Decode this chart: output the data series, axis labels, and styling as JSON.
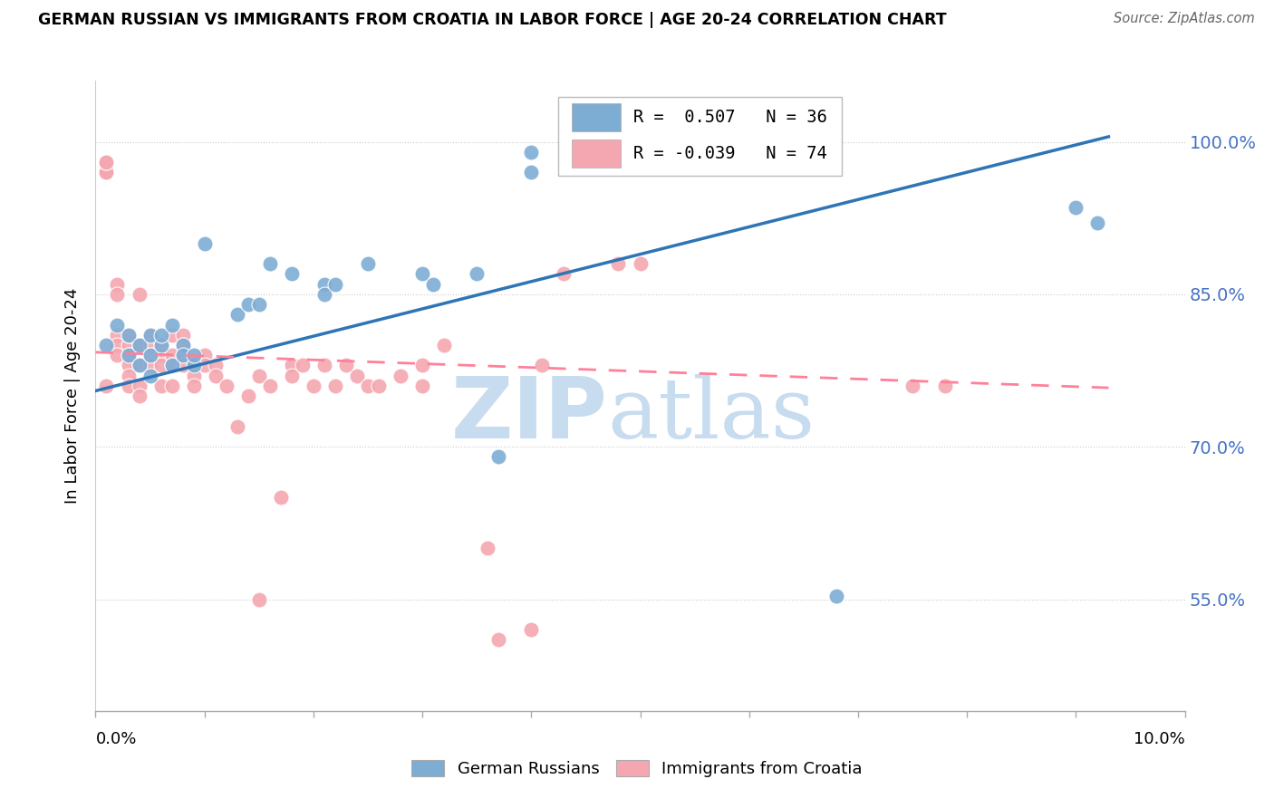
{
  "title": "GERMAN RUSSIAN VS IMMIGRANTS FROM CROATIA IN LABOR FORCE | AGE 20-24 CORRELATION CHART",
  "source": "Source: ZipAtlas.com",
  "ylabel": "In Labor Force | Age 20-24",
  "ytick_vals": [
    0.55,
    0.7,
    0.85,
    1.0
  ],
  "ytick_labels": [
    "55.0%",
    "70.0%",
    "85.0%",
    "100.0%"
  ],
  "legend_labels": [
    "German Russians",
    "Immigrants from Croatia"
  ],
  "legend_r_blue": "R =  0.507",
  "legend_n_blue": "N = 36",
  "legend_r_pink": "R = -0.039",
  "legend_n_pink": "N = 74",
  "blue_color": "#7EADD4",
  "pink_color": "#F4A7B0",
  "line_blue": "#2E75B6",
  "line_pink": "#FF8099",
  "watermark_zip_color": "#C8DCF0",
  "watermark_atlas_color": "#C8DCF0",
  "xmin": 0.0,
  "xmax": 0.1,
  "ymin": 0.44,
  "ymax": 1.06,
  "blue_scatter_x": [
    0.001,
    0.002,
    0.003,
    0.003,
    0.004,
    0.004,
    0.005,
    0.005,
    0.005,
    0.006,
    0.006,
    0.007,
    0.007,
    0.008,
    0.008,
    0.009,
    0.009,
    0.01,
    0.013,
    0.014,
    0.015,
    0.016,
    0.018,
    0.021,
    0.021,
    0.022,
    0.025,
    0.03,
    0.031,
    0.035,
    0.037,
    0.04,
    0.04,
    0.068,
    0.09,
    0.092
  ],
  "blue_scatter_y": [
    0.8,
    0.82,
    0.79,
    0.81,
    0.78,
    0.8,
    0.77,
    0.79,
    0.81,
    0.8,
    0.81,
    0.82,
    0.78,
    0.8,
    0.79,
    0.78,
    0.79,
    0.9,
    0.83,
    0.84,
    0.84,
    0.88,
    0.87,
    0.86,
    0.85,
    0.86,
    0.88,
    0.87,
    0.86,
    0.87,
    0.69,
    0.99,
    0.97,
    0.553,
    0.935,
    0.92
  ],
  "pink_scatter_x": [
    0.001,
    0.001,
    0.001,
    0.001,
    0.001,
    0.002,
    0.002,
    0.002,
    0.002,
    0.002,
    0.003,
    0.003,
    0.003,
    0.003,
    0.003,
    0.003,
    0.004,
    0.004,
    0.004,
    0.004,
    0.004,
    0.005,
    0.005,
    0.005,
    0.005,
    0.006,
    0.006,
    0.006,
    0.006,
    0.007,
    0.007,
    0.007,
    0.007,
    0.008,
    0.008,
    0.008,
    0.008,
    0.009,
    0.009,
    0.009,
    0.01,
    0.01,
    0.011,
    0.011,
    0.012,
    0.013,
    0.014,
    0.015,
    0.015,
    0.016,
    0.017,
    0.018,
    0.018,
    0.019,
    0.02,
    0.021,
    0.022,
    0.023,
    0.024,
    0.025,
    0.026,
    0.028,
    0.03,
    0.03,
    0.032,
    0.036,
    0.037,
    0.04,
    0.041,
    0.043,
    0.048,
    0.05,
    0.075,
    0.078
  ],
  "pink_scatter_y": [
    0.97,
    0.97,
    0.98,
    0.98,
    0.76,
    0.86,
    0.85,
    0.81,
    0.8,
    0.79,
    0.8,
    0.81,
    0.79,
    0.78,
    0.77,
    0.76,
    0.85,
    0.8,
    0.78,
    0.76,
    0.75,
    0.81,
    0.8,
    0.79,
    0.78,
    0.8,
    0.79,
    0.78,
    0.76,
    0.81,
    0.79,
    0.78,
    0.76,
    0.81,
    0.8,
    0.79,
    0.78,
    0.78,
    0.77,
    0.76,
    0.79,
    0.78,
    0.78,
    0.77,
    0.76,
    0.72,
    0.75,
    0.77,
    0.55,
    0.76,
    0.65,
    0.78,
    0.77,
    0.78,
    0.76,
    0.78,
    0.76,
    0.78,
    0.77,
    0.76,
    0.76,
    0.77,
    0.76,
    0.78,
    0.8,
    0.6,
    0.51,
    0.52,
    0.78,
    0.87,
    0.88,
    0.88,
    0.76,
    0.76
  ],
  "blue_trendline_x": [
    0.0,
    0.093
  ],
  "blue_trendline_y": [
    0.755,
    1.005
  ],
  "pink_trendline_x": [
    0.0,
    0.093
  ],
  "pink_trendline_y": [
    0.793,
    0.758
  ]
}
